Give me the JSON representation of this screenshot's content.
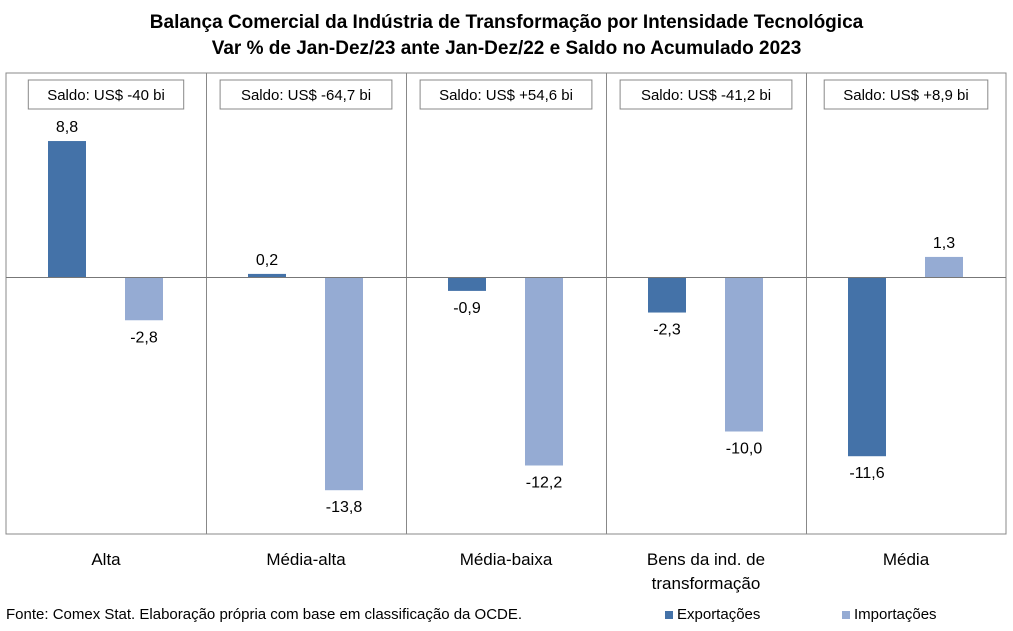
{
  "chart_data": {
    "type": "bar",
    "title": "Balança Comercial da Indústria de Transformação por Intensidade Tecnológica",
    "subtitle": "Var % de Jan-Dez/23 ante Jan-Dez/22 e Saldo no Acumulado 2023",
    "categories": [
      [
        "Alta"
      ],
      [
        "Média-alta"
      ],
      [
        "Média-baixa"
      ],
      [
        "Bens da ind. de",
        "transformação"
      ],
      [
        "Média"
      ]
    ],
    "series": [
      {
        "name": "Exportações",
        "color": "#4472a8",
        "values": [
          8.8,
          0.2,
          -0.9,
          -2.3,
          -11.6
        ],
        "labels": [
          "8,8",
          "0,2",
          "-0,9",
          "-2,3",
          "-11,6"
        ]
      },
      {
        "name": "Importações",
        "color": "#95abd3",
        "values": [
          -2.8,
          -13.8,
          -12.2,
          -10.0,
          1.3
        ],
        "labels": [
          "-2,8",
          "-13,8",
          "-12,2",
          "-10,0",
          "1,3"
        ]
      }
    ],
    "saldo_labels": [
      "Saldo: US$ -40 bi",
      "Saldo: US$ -64,7 bi",
      "Saldo: US$ +54,6 bi",
      "Saldo: US$ -41,2 bi",
      "Saldo: US$ +8,9 bi"
    ],
    "ylim": [
      -15.5,
      12
    ],
    "grid": false,
    "legend_position": "bottom-right"
  },
  "footer": {
    "source": "Fonte: Comex Stat. Elaboração própria com base em classificação da OCDE."
  }
}
